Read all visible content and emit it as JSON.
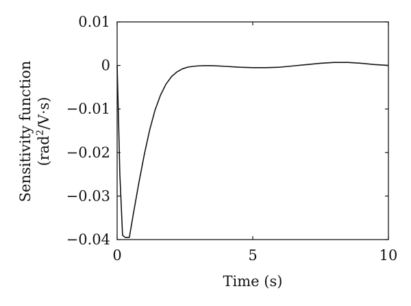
{
  "chart_data": {
    "type": "line",
    "xlabel": "Time (s)",
    "ylabel_line1": "Sensitivity function",
    "ylabel_line2_prefix": "(rad",
    "ylabel_line2_sup": "2",
    "ylabel_line2_suffix": "/V·s)",
    "xlim": [
      0,
      10
    ],
    "ylim": [
      -0.04,
      0.01
    ],
    "x_ticks": [
      0,
      5,
      10
    ],
    "x_tick_labels": [
      "0",
      "5",
      "10"
    ],
    "y_ticks": [
      0.01,
      0,
      -0.01,
      -0.02,
      -0.03,
      -0.04
    ],
    "y_tick_labels": [
      "0.01",
      "0",
      "−0.01",
      "−0.02",
      "−0.03",
      "−0.04"
    ],
    "grid": false,
    "series": [
      {
        "x": [
          0,
          0.05,
          0.1,
          0.2,
          0.3,
          0.45,
          0.6,
          0.8,
          1.0,
          1.2,
          1.4,
          1.6,
          1.8,
          2.0,
          2.2,
          2.4,
          2.6,
          2.8,
          3.0,
          3.2,
          3.5,
          4.0,
          4.5,
          5.0,
          5.5,
          6.0,
          6.5,
          7.0,
          7.5,
          8.0,
          8.5,
          9.0,
          9.5,
          10.0
        ],
        "y": [
          0,
          -0.012,
          -0.025,
          -0.039,
          -0.0395,
          -0.0395,
          -0.034,
          -0.027,
          -0.0205,
          -0.0148,
          -0.0102,
          -0.0068,
          -0.0043,
          -0.0026,
          -0.0015,
          -0.0008,
          -0.0004,
          -0.0002,
          -0.0001,
          -5e-05,
          -5e-05,
          -0.0002,
          -0.0004,
          -0.0005,
          -0.0005,
          -0.0004,
          -0.0001,
          0.0002,
          0.0005,
          0.0007,
          0.0007,
          0.0005,
          0.0002,
          0.0
        ]
      }
    ]
  }
}
